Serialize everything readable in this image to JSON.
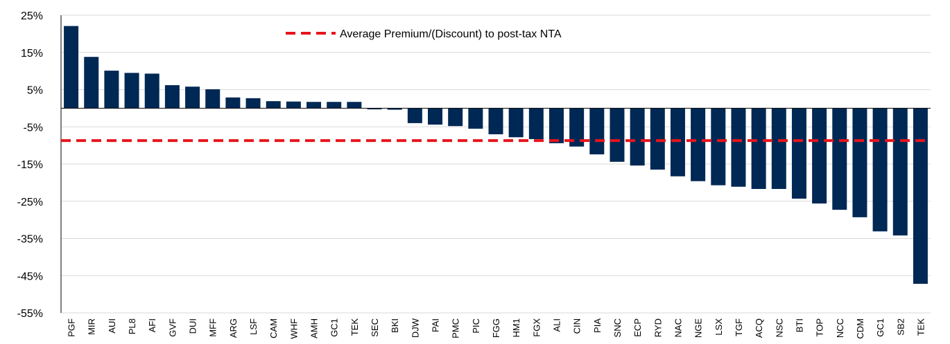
{
  "chart_data": {
    "type": "bar",
    "categories": [
      "PGF",
      "MIR",
      "AUI",
      "PL8",
      "AFI",
      "GVF",
      "DUI",
      "MFF",
      "ARG",
      "LSF",
      "CAM",
      "WHF",
      "AMH",
      "GC1",
      "TEK",
      "SEC",
      "BKI",
      "DJW",
      "PAI",
      "PMC",
      "PIC",
      "FGG",
      "HM1",
      "FGX",
      "ALI",
      "CIN",
      "PIA",
      "SNC",
      "ECP",
      "RYD",
      "NAC",
      "NGE",
      "LSX",
      "TGF",
      "ACQ",
      "NSC",
      "BTI",
      "TOP",
      "NCC",
      "CDM",
      "GC1",
      "SB2",
      "TEK"
    ],
    "values": [
      22.1,
      13.8,
      10.1,
      9.5,
      9.3,
      6.2,
      5.8,
      5.1,
      2.9,
      2.7,
      1.9,
      1.8,
      1.7,
      1.7,
      1.7,
      -0.3,
      -0.4,
      -4.0,
      -4.4,
      -4.8,
      -5.5,
      -7.0,
      -7.8,
      -8.3,
      -9.4,
      -10.3,
      -12.4,
      -14.4,
      -15.4,
      -16.5,
      -18.3,
      -19.6,
      -20.7,
      -21.1,
      -21.7,
      -21.7,
      -24.3,
      -25.6,
      -27.3,
      -29.3,
      -33.1,
      -34.2,
      -47.2
    ],
    "color": "#002855",
    "average": {
      "name": "Average Premium/(Discount) to post-tax NTA",
      "value": -8.7,
      "color": "#e8141c"
    },
    "ylim": [
      -55,
      25
    ],
    "yticks": [
      {
        "value": 25,
        "label": "25%"
      },
      {
        "value": 15,
        "label": "15%"
      },
      {
        "value": 5,
        "label": "5%"
      },
      {
        "value": -5,
        "label": "-5%"
      },
      {
        "value": -15,
        "label": "-15%"
      },
      {
        "value": -25,
        "label": "-25%"
      },
      {
        "value": -35,
        "label": "-35%"
      },
      {
        "value": -45,
        "label": "-45%"
      },
      {
        "value": -55,
        "label": "-55%"
      }
    ],
    "grid": true
  }
}
